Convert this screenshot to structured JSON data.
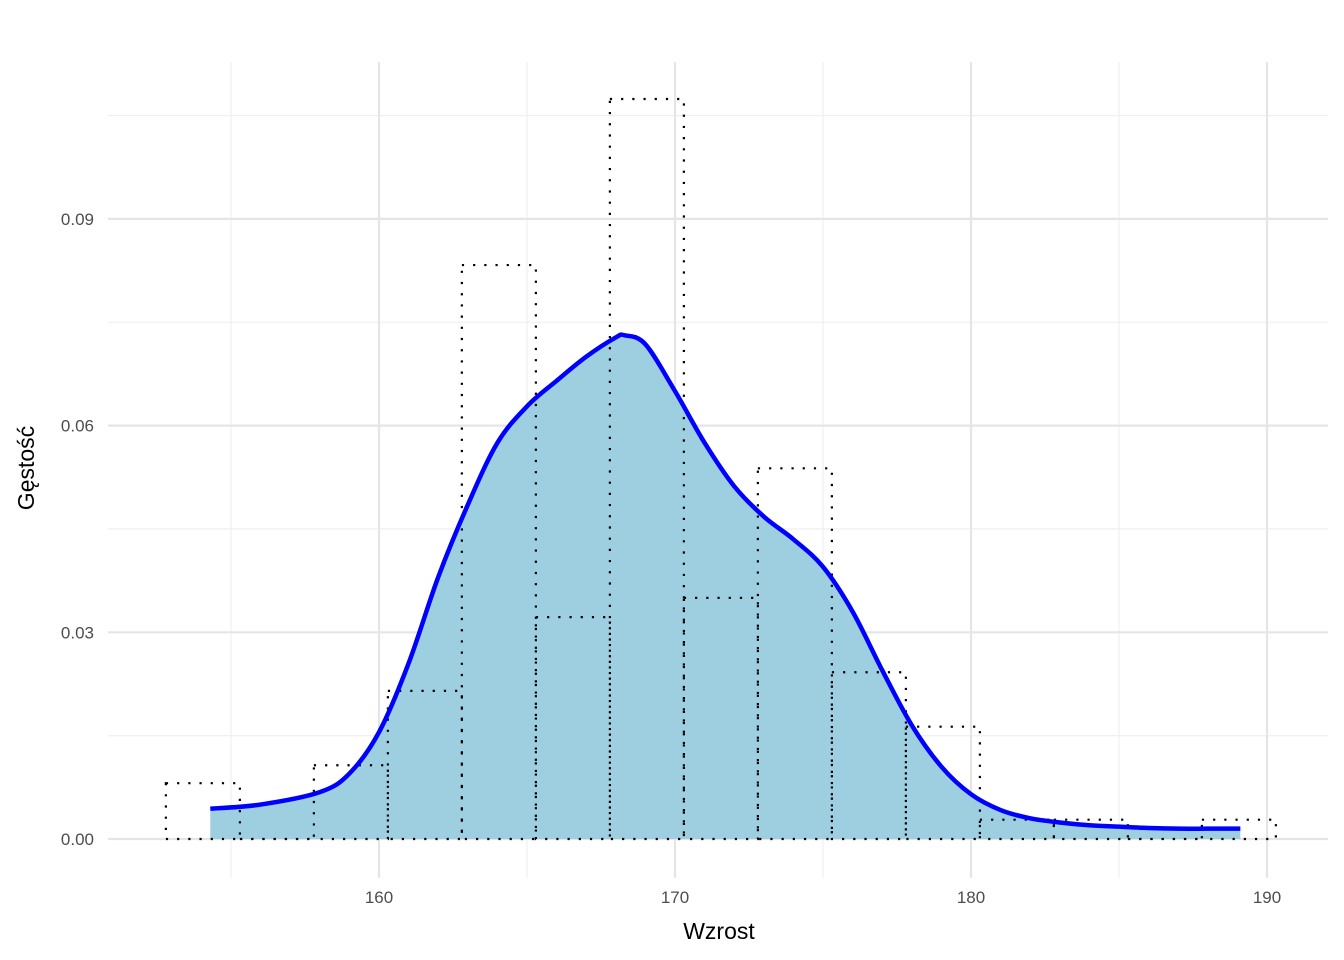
{
  "chart_data": {
    "type": "histogram+density",
    "title": "",
    "xlabel": "Wzrost",
    "ylabel": "Gęstość",
    "xlim": [
      151,
      191.5
    ],
    "ylim": [
      -0.0054,
      0.1127
    ],
    "x_ticks": [
      160,
      170,
      180,
      190
    ],
    "x_tick_labels": [
      "160",
      "170",
      "180",
      "190"
    ],
    "y_ticks": [
      0.0,
      0.03,
      0.06,
      0.09
    ],
    "y_tick_labels": [
      "0.00",
      "0.03",
      "0.06",
      "0.09"
    ],
    "grid": true,
    "legend": "none",
    "histogram": {
      "style": "dotted outline, no fill",
      "bin_width": 2.5,
      "bin_edges": [
        152.8,
        155.3,
        157.8,
        160.3,
        162.8,
        165.3,
        167.8,
        170.3,
        172.8,
        175.3,
        177.8,
        180.3,
        182.8,
        185.3,
        187.8,
        190.3
      ],
      "densities": [
        0.0081,
        0.0,
        0.0107,
        0.0215,
        0.0833,
        0.0322,
        0.1074,
        0.035,
        0.0538,
        0.0242,
        0.0163,
        0.0028,
        0.0028,
        0.0,
        0.0028
      ]
    },
    "density": {
      "line_color": "#0000ff",
      "fill_color": "#9ecfe1",
      "x": [
        154.3,
        156,
        158,
        159,
        160,
        161,
        162,
        163,
        164,
        165,
        166,
        167,
        168,
        168.3,
        169,
        170,
        171,
        172,
        173,
        174,
        175,
        176,
        177,
        178,
        179,
        180,
        181,
        182,
        183,
        184,
        185,
        186,
        187,
        188,
        189.1
      ],
      "y": [
        0.0044,
        0.005,
        0.0068,
        0.0095,
        0.0155,
        0.0255,
        0.038,
        0.0485,
        0.0575,
        0.0628,
        0.0665,
        0.07,
        0.0728,
        0.0731,
        0.0718,
        0.065,
        0.0575,
        0.0512,
        0.0468,
        0.0435,
        0.0395,
        0.033,
        0.0245,
        0.0165,
        0.0105,
        0.0065,
        0.0042,
        0.003,
        0.0024,
        0.002,
        0.0018,
        0.0016,
        0.0015,
        0.0015,
        0.0015
      ]
    }
  },
  "colors": {
    "background": "#ffffff",
    "grid_major": "#e5e5e5",
    "grid_minor": "#eeeeee",
    "density_line": "#0000ff",
    "density_fill": "#9ecfe1",
    "histogram_outline": "#000000",
    "tick_text": "#4d4d4d",
    "axis_title": "#000000"
  }
}
